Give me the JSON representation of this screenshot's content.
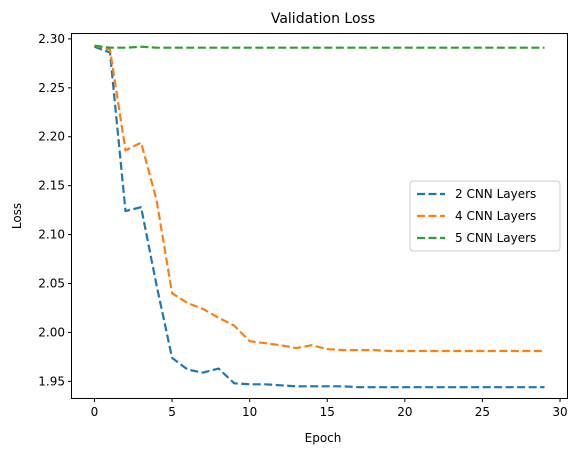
{
  "chart_data": {
    "type": "line",
    "title": "Validation Loss",
    "xlabel": "Epoch",
    "ylabel": "Loss",
    "xlim": [
      -1.45,
      30.45
    ],
    "ylim": [
      1.933,
      2.305
    ],
    "xticks": [
      0,
      5,
      10,
      15,
      20,
      25,
      30
    ],
    "xtick_labels": [
      "0",
      "5",
      "10",
      "15",
      "20",
      "25",
      "30"
    ],
    "yticks": [
      1.95,
      2.0,
      2.05,
      2.1,
      2.15,
      2.2,
      2.25,
      2.3
    ],
    "ytick_labels": [
      "1.95",
      "2.00",
      "2.05",
      "2.10",
      "2.15",
      "2.20",
      "2.25",
      "2.30"
    ],
    "grid": false,
    "legend_position": "center-right",
    "x": [
      0,
      1,
      2,
      3,
      4,
      5,
      6,
      7,
      8,
      9,
      10,
      11,
      12,
      13,
      14,
      15,
      16,
      17,
      18,
      19,
      20,
      21,
      22,
      23,
      24,
      25,
      26,
      27,
      28,
      29
    ],
    "series": [
      {
        "name": "2 CNN Layers",
        "color": "#1f77b4",
        "values": [
          2.292,
          2.286,
          2.124,
          2.128,
          2.048,
          1.974,
          1.962,
          1.959,
          1.963,
          1.948,
          1.947,
          1.947,
          1.946,
          1.945,
          1.945,
          1.945,
          1.945,
          1.944,
          1.944,
          1.944,
          1.944,
          1.944,
          1.944,
          1.944,
          1.944,
          1.944,
          1.944,
          1.944,
          1.944,
          1.944
        ]
      },
      {
        "name": "4 CNN Layers",
        "color": "#ff7f0e",
        "values": [
          2.293,
          2.289,
          2.186,
          2.194,
          2.135,
          2.04,
          2.03,
          2.024,
          2.015,
          2.007,
          1.991,
          1.989,
          1.987,
          1.984,
          1.987,
          1.983,
          1.982,
          1.982,
          1.982,
          1.981,
          1.981,
          1.981,
          1.981,
          1.981,
          1.981,
          1.981,
          1.981,
          1.981,
          1.981,
          1.981
        ]
      },
      {
        "name": "5 CNN Layers",
        "color": "#2ca02c",
        "values": [
          2.293,
          2.291,
          2.291,
          2.292,
          2.291,
          2.291,
          2.291,
          2.291,
          2.291,
          2.291,
          2.291,
          2.291,
          2.291,
          2.291,
          2.291,
          2.291,
          2.291,
          2.291,
          2.291,
          2.291,
          2.291,
          2.291,
          2.291,
          2.291,
          2.291,
          2.291,
          2.291,
          2.291,
          2.291,
          2.291
        ]
      }
    ]
  }
}
